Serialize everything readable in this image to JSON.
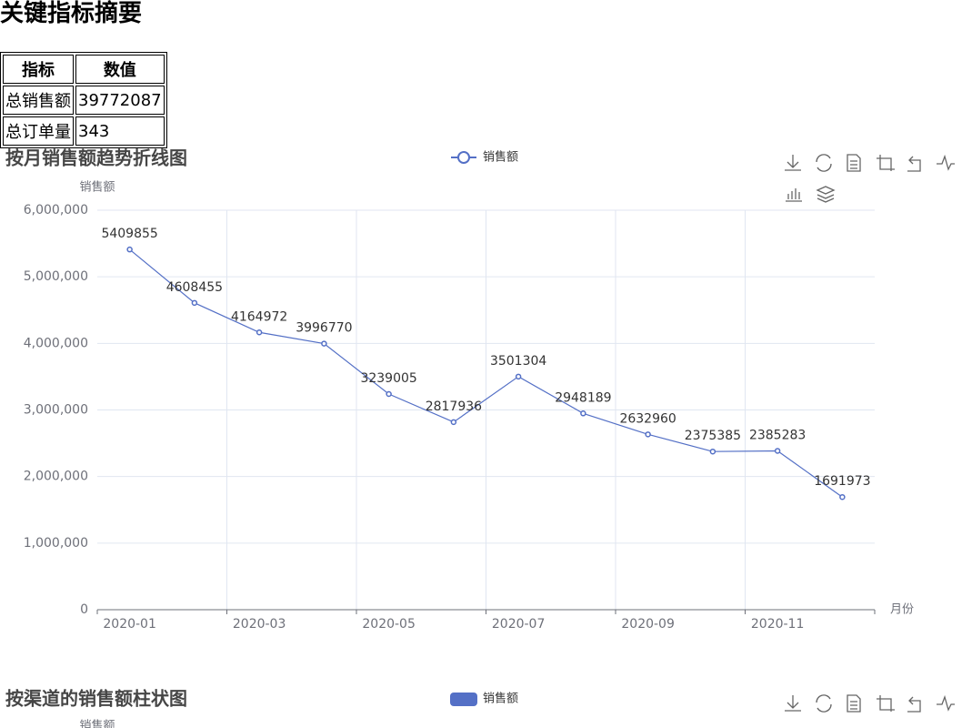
{
  "header": {
    "title": "关键指标摘要"
  },
  "table": {
    "columns": [
      "指标",
      "数值"
    ],
    "rows": [
      [
        "总销售额",
        39772087
      ],
      [
        "总订单量",
        343
      ]
    ]
  },
  "chart_data": [
    {
      "type": "line",
      "title": "按月销售额趋势折线图",
      "y_label": "销售额",
      "x_label": "月份",
      "categories": [
        "2020-01",
        null,
        "2020-03",
        null,
        "2020-05",
        null,
        "2020-07",
        null,
        "2020-09",
        null,
        "2020-11",
        null
      ],
      "series": [
        {
          "name": "销售额",
          "color": "#5470c6",
          "values": [
            5409855,
            4608455,
            4164972,
            3996770,
            3239005,
            2817936,
            3501304,
            2948189,
            2632960,
            2375385,
            2385283,
            1691973
          ]
        }
      ],
      "ylim": [
        0,
        6000000
      ],
      "yticks": [
        0,
        {
          "value": 1000000,
          "label": "1,000,000"
        },
        {
          "value": 2000000,
          "label": "2,000,000"
        },
        {
          "value": 3000000,
          "label": "3,000,000"
        },
        {
          "value": 4000000,
          "label": "4,000,000"
        },
        {
          "value": 5000000,
          "label": "5,000,000"
        },
        {
          "value": 6000000,
          "label": "6,000,000"
        }
      ],
      "grid": true,
      "data_labels": true
    },
    {
      "type": "bar",
      "title": "按渠道的销售额柱状图",
      "y_label": "销售额",
      "series": [
        {
          "name": "销售额",
          "color": "#5470c6"
        }
      ]
    }
  ]
}
